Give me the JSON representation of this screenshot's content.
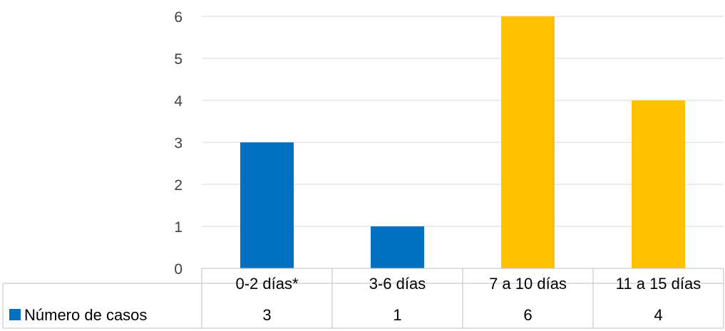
{
  "chart_data": {
    "type": "bar",
    "title": "",
    "xlabel": "",
    "ylabel": "",
    "categories": [
      "0-2 días*",
      "3-6 días",
      "7 a 10 días",
      "11 a 15 días"
    ],
    "series": [
      {
        "name": "Número de casos",
        "values": [
          3,
          1,
          6,
          4
        ],
        "color": "#0070C0"
      }
    ],
    "bar_colors": [
      "#0070C0",
      "#0070C0",
      "#FFC000",
      "#FFC000"
    ],
    "ylim": [
      0,
      6
    ],
    "yticks": [
      "0",
      "1",
      "2",
      "3",
      "4",
      "5",
      "6"
    ],
    "grid": true,
    "legend": "data-table-left",
    "data_table": true
  }
}
